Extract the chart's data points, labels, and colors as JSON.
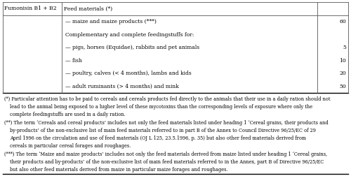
{
  "col1_header": "Fumonisin B1 + B2",
  "col2_header": "Feed materials (*)",
  "rows": [
    {
      "text": "— maize and maize products (***)",
      "value": "60"
    },
    {
      "text": "Complementary and complete feedingstuffs for:",
      "value": ""
    },
    {
      "text": "— pigs, horses (Equidae), rabbits and pet animals",
      "value": "5"
    },
    {
      "text": "— fish",
      "value": "10"
    },
    {
      "text": "— poultry, calves (< 4 months), lambs and kids",
      "value": "20"
    },
    {
      "text": "— adult ruminants (> 4 months) and mink",
      "value": "50"
    }
  ],
  "footnote_lines": [
    "(*) Particular attention has to be paid to cereals and cereals products fed directly to the animals that their use in a daily ration should not",
    "lead to the animal being exposed to a higher level of these mycotoxins than the corresponding levels of exposure where only the",
    "complete feedingstuffs are used in a daily ration.",
    "(**) The term ‘Cereals and cereal products’ includes not only the feed materials listed under heading 1 ‘Cereal grains, their products and",
    "by-products’ of the non-exclusive list of main feed materials referred to in part B of the Annex to Council Directive 96/25/EC of 29",
    "April 1996 on the circulation and use of feed materials (OJ L 125, 23.5.1996, p. 35) but also other feed materials derived from",
    "cereals in particular cereal forages and roughages.",
    "(***) The term ‘Maize and maize products’ includes not only the feed materials derived from maize listed under heading 1 ‘Cereal grains,",
    "their products and by-products’ of the non-exclusive list of main feed materials referred to in the Annex, part B of Directive 96/25/EC",
    "but also other feed materials derived from maize in particular maize forages and roughages."
  ],
  "footnote_indents": [
    0,
    1,
    1,
    0,
    1,
    1,
    1,
    0,
    1,
    1
  ],
  "bg_color": "#ffffff",
  "text_color": "#000000",
  "border_color": "#555555",
  "table_fs": 5.5,
  "footnote_fs": 4.7
}
